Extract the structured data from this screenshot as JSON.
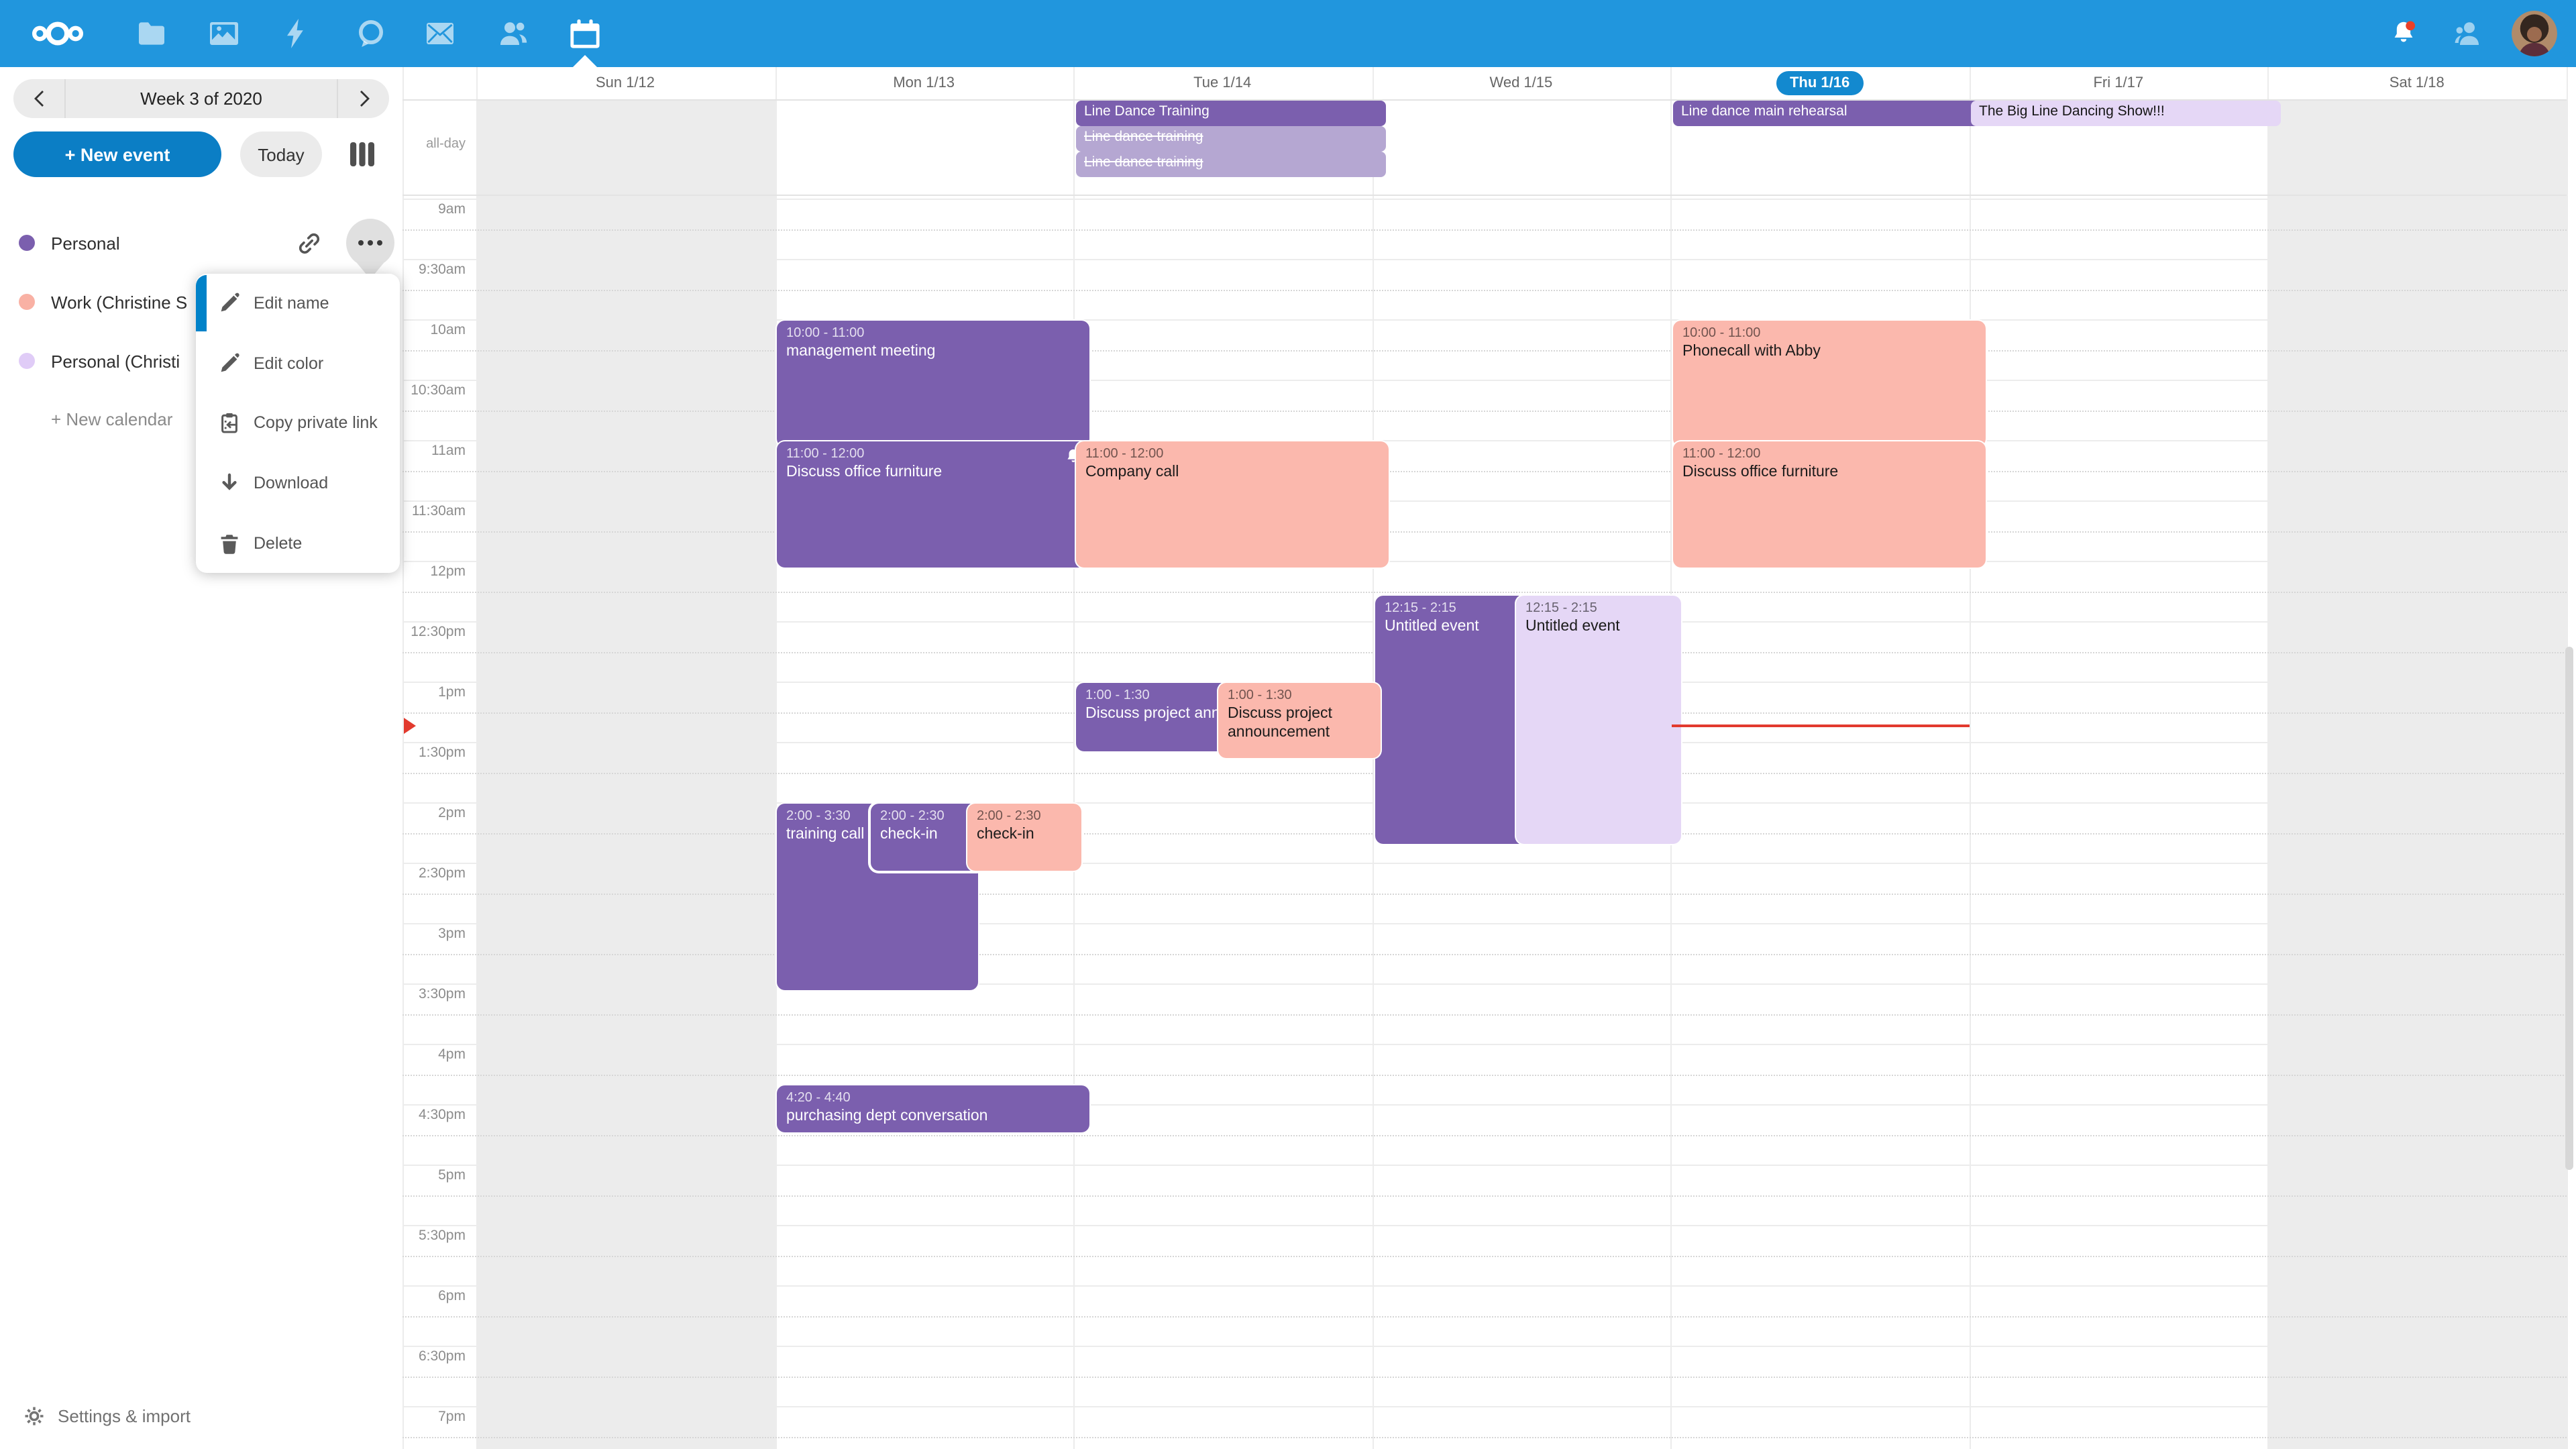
{
  "topbar": {
    "bg_color": "#2196dd",
    "apps": [
      "nextcloud-logo",
      "files",
      "photos",
      "activity",
      "talk",
      "mail",
      "contacts",
      "calendar"
    ],
    "active_app": "calendar",
    "notification_dot_color": "#eb4028"
  },
  "sidebar": {
    "week_label": "Week 3 of 2020",
    "new_event_label": "+ New event",
    "today_label": "Today",
    "calendars": [
      {
        "name": "Personal",
        "color": "#7b5fae"
      },
      {
        "name": "Work (Christine S",
        "color": "#f9b1a4"
      },
      {
        "name": "Personal (Christi",
        "color": "#e0ccf7"
      }
    ],
    "new_calendar_label": "+ New calendar",
    "settings_label": "Settings & import"
  },
  "calendar_menu": {
    "items": [
      {
        "icon": "pencil-icon",
        "label": "Edit name"
      },
      {
        "icon": "pencil-icon",
        "label": "Edit color"
      },
      {
        "icon": "clipboard-icon",
        "label": "Copy private link"
      },
      {
        "icon": "arrow-down-icon",
        "label": "Download"
      },
      {
        "icon": "trash-icon",
        "label": "Delete"
      }
    ]
  },
  "week": {
    "allday_label": "all-day",
    "days": [
      {
        "label": "Sun 1/12",
        "weekend": true
      },
      {
        "label": "Mon 1/13"
      },
      {
        "label": "Tue 1/14"
      },
      {
        "label": "Wed 1/15"
      },
      {
        "label": "Thu 1/16",
        "today": true
      },
      {
        "label": "Fri 1/17"
      },
      {
        "label": "Sat 1/18",
        "weekend": true
      }
    ],
    "times": [
      "9am",
      "9:30am",
      "10am",
      "10:30am",
      "11am",
      "11:30am",
      "12pm",
      "12:30pm",
      "1pm",
      "1:30pm",
      "2pm",
      "2:30pm",
      "3pm",
      "3:30pm",
      "4pm",
      "4:30pm",
      "5pm",
      "5:30pm",
      "6pm",
      "6:30pm",
      "7pm"
    ],
    "allday_events": [
      {
        "day": "Tue 1/14",
        "title": "Line Dance Training",
        "style": "purple",
        "strikethrough": false
      },
      {
        "day": "Tue 1/14",
        "title": "Line dance training",
        "style": "purple-faded",
        "strikethrough": true
      },
      {
        "day": "Tue 1/14",
        "title": "Line dance training",
        "style": "purple-faded",
        "strikethrough": true
      },
      {
        "day": "Thu 1/16",
        "title": "Line dance main rehearsal",
        "style": "purple",
        "strikethrough": false
      },
      {
        "day": "Fri 1/17",
        "title": "The Big Line Dancing Show!!!",
        "style": "lavender",
        "strikethrough": false
      }
    ],
    "events": [
      {
        "day": "Mon 1/13",
        "time": "10:00 - 11:00",
        "title": "management meeting",
        "style": "purple"
      },
      {
        "day": "Mon 1/13",
        "time": "11:00 - 12:00",
        "title": "Discuss office furniture",
        "style": "purple",
        "reminder": true
      },
      {
        "day": "Mon 1/13",
        "time": "2:00 - 3:30",
        "title": "training call",
        "style": "purple"
      },
      {
        "day": "Mon 1/13",
        "time": "2:00 - 2:30",
        "title": "check-in",
        "style": "purple"
      },
      {
        "day": "Mon 1/13",
        "time": "2:00 - 2:30",
        "title": "check-in",
        "style": "pink"
      },
      {
        "day": "Mon 1/13",
        "time": "4:20 - 4:40",
        "title": "purchasing dept conversation",
        "style": "purple"
      },
      {
        "day": "Tue 1/14",
        "time": "11:00 - 12:00",
        "title": "Company call",
        "style": "pink"
      },
      {
        "day": "Tue 1/14",
        "time": "1:00 - 1:30",
        "title": "Discuss project announcement",
        "style": "purple"
      },
      {
        "day": "Tue 1/14",
        "time": "1:00 - 1:30",
        "title": "Discuss project announcement",
        "style": "pink"
      },
      {
        "day": "Wed 1/15",
        "time": "12:15 - 2:15",
        "title": "Untitled event",
        "style": "purple"
      },
      {
        "day": "Wed 1/15",
        "time": "12:15 - 2:15",
        "title": "Untitled event",
        "style": "lavender"
      },
      {
        "day": "Thu 1/16",
        "time": "10:00 - 11:00",
        "title": "Phonecall with Abby",
        "style": "pink"
      },
      {
        "day": "Thu 1/16",
        "time": "11:00 - 12:00",
        "title": "Discuss office furniture",
        "style": "pink"
      }
    ],
    "now_indicator": {
      "day": "Thu 1/16",
      "color": "#e23a2e"
    }
  },
  "colors": {
    "primary_blue": "#0b7ec5",
    "event_purple": "#7b5fae",
    "event_pink": "#fbb8ad",
    "event_lavender": "#e5d7f6",
    "weekend_bg": "#ececec",
    "today_pill": "#1389cf"
  }
}
